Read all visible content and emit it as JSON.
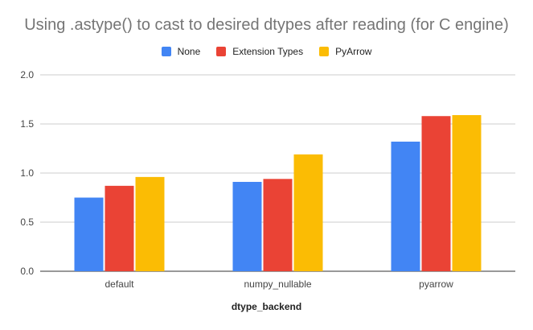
{
  "chart_data": {
    "type": "bar",
    "title": "Using .astype() to cast to desired dtypes after reading (for C engine)",
    "xlabel": "dtype_backend",
    "ylabel": "",
    "categories": [
      "default",
      "numpy_nullable",
      "pyarrow"
    ],
    "series": [
      {
        "name": "None",
        "color": "#4285F4",
        "values": [
          0.75,
          0.91,
          1.32
        ]
      },
      {
        "name": "Extension Types",
        "color": "#EA4335",
        "values": [
          0.87,
          0.94,
          1.58
        ]
      },
      {
        "name": "PyArrow",
        "color": "#FBBC04",
        "values": [
          0.96,
          1.19,
          1.59
        ]
      }
    ],
    "ylim": [
      0,
      2.0
    ],
    "yticks": [
      "0.0",
      "0.5",
      "1.0",
      "1.5",
      "2.0"
    ],
    "grid": true,
    "legend_position": "top"
  }
}
